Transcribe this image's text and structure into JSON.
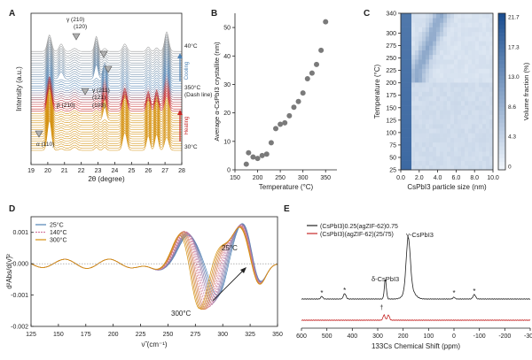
{
  "colors": {
    "orange": "#d4900e",
    "red": "#c62828",
    "blue": "#4f84b6",
    "navy": "#1f4e8c",
    "gray": "#7a7a7a",
    "dark": "#222222",
    "heat_low": "#eef4fb",
    "heat_high": "#1c4f91"
  },
  "chart_data": [
    {
      "panel": "A",
      "type": "line",
      "xlabel": "2θ (degree)",
      "ylabel": "Intensity (a.u.)",
      "xlim": [
        19,
        28
      ],
      "xticks": [
        19,
        20,
        21,
        22,
        23,
        24,
        25,
        26,
        27,
        28
      ],
      "temperature_labels": [
        "40°C",
        "350°C\n(Dash line)",
        "30°C"
      ],
      "arrow_labels": [
        "Cooling",
        "Heating"
      ],
      "annotations": [
        "γ (210)\n(120)",
        "γ (211)\n(121)",
        "β (210)",
        "(103)",
        "α (110)"
      ],
      "peak_positions": [
        20.1,
        22.9,
        23.4,
        24.6,
        26.0,
        26.5,
        27.1
      ]
    },
    {
      "panel": "B",
      "type": "scatter",
      "xlabel": "Temperature (°C)",
      "ylabel": "Average α-CsPbI3 crystallite (nm)",
      "xlim": [
        150,
        375
      ],
      "ylim": [
        0,
        55
      ],
      "xticks": [
        150,
        200,
        250,
        300,
        350
      ],
      "yticks": [
        0,
        10,
        20,
        30,
        40,
        50
      ],
      "x": [
        175,
        180,
        190,
        200,
        210,
        220,
        230,
        240,
        250,
        260,
        270,
        280,
        290,
        300,
        310,
        320,
        330,
        340,
        350
      ],
      "y": [
        2,
        6,
        4.5,
        4,
        5,
        5.5,
        9.5,
        14.5,
        16,
        16.5,
        19,
        22,
        24,
        27,
        32,
        34,
        37,
        42,
        52
      ]
    },
    {
      "panel": "C",
      "type": "heatmap",
      "xlabel": "CsPbI3 particle size (nm)",
      "ylabel": "Temperature (°C)",
      "colorbar_label": "Volume fraction (%)",
      "xlim": [
        0,
        10
      ],
      "ylim": [
        25,
        340
      ],
      "xticks": [
        "0.0",
        "2.0",
        "4.0",
        "6.0",
        "8.0",
        "10.0"
      ],
      "yticks": [
        25,
        50,
        75,
        100,
        125,
        150,
        175,
        200,
        225,
        250,
        275,
        300,
        340
      ],
      "colorbar_ticks": [
        "21.7",
        "17.3",
        "13.0",
        "8.6",
        "4.3",
        "0"
      ]
    },
    {
      "panel": "D",
      "type": "line",
      "xlabel": "ν̃ (cm⁻¹)",
      "ylabel": "d²Abs/d(ν̃)²",
      "xlim": [
        125,
        350
      ],
      "ylim": [
        -0.002,
        0.0015
      ],
      "xticks": [
        125,
        150,
        175,
        200,
        225,
        250,
        275,
        300,
        325,
        350
      ],
      "yticks": [
        "0.001",
        "0.000",
        "-0.001",
        "-0.002"
      ],
      "legend": [
        "25°C",
        "140°C",
        "300°C"
      ],
      "annotations": [
        "25°C",
        "300°C"
      ]
    },
    {
      "panel": "E",
      "type": "line",
      "xlabel": "133Cs Chemical Shift (ppm)",
      "xlim": [
        600,
        -300
      ],
      "xticks": [
        600,
        500,
        400,
        300,
        200,
        100,
        0,
        -100,
        -200,
        -300
      ],
      "legend": [
        "(CsPbI3)0.25(agZIF-62)0.75",
        "(CsPbI3)(agZIF-62)(25/75)"
      ],
      "annotations": [
        "γ-CsPbI3",
        "δ-CsPbI3",
        "*",
        "*",
        "*",
        "*",
        "†"
      ],
      "peaks_ppm": [
        520,
        430,
        270,
        180,
        0,
        -80
      ]
    }
  ]
}
